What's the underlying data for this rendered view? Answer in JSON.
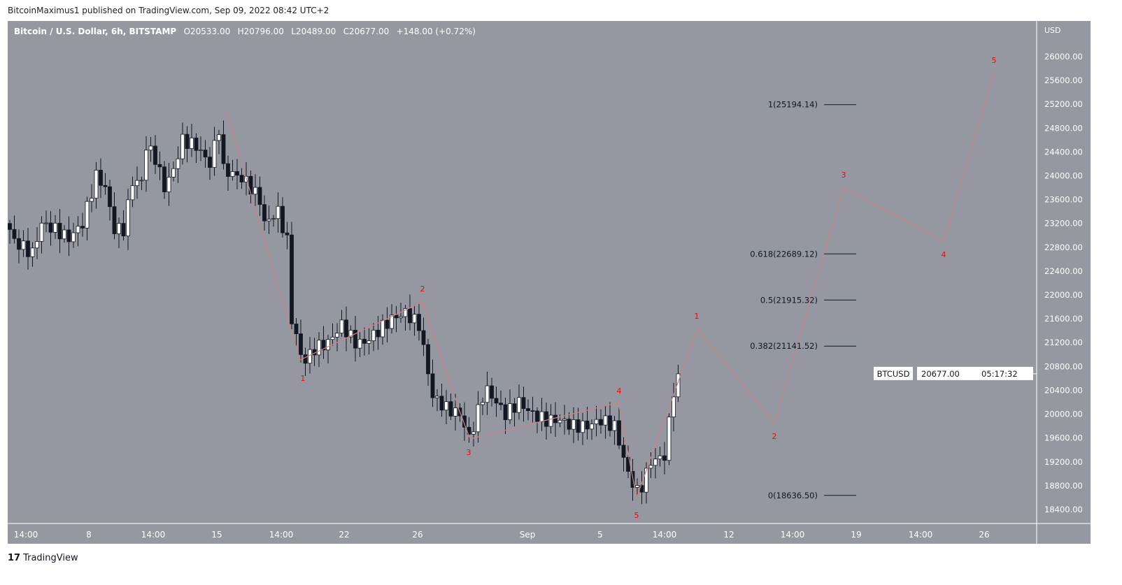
{
  "header": {
    "published": "BitcoinMaximus1 published on TradingView.com, Sep 09, 2022 08:42 UTC+2"
  },
  "legend": {
    "symbol": "Bitcoin / U.S. Dollar, 6h, BITSTAMP",
    "o": "O20533.00",
    "h": "H20796.00",
    "l": "L20489.00",
    "c": "C20677.00",
    "change": "+148.00 (+0.72%)"
  },
  "price_axis": {
    "currency": "USD",
    "ticks": [
      "18400.00",
      "18800.00",
      "19200.00",
      "19600.00",
      "20000.00",
      "20400.00",
      "20800.00",
      "21200.00",
      "21600.00",
      "22000.00",
      "22400.00",
      "22800.00",
      "23200.00",
      "23600.00",
      "24000.00",
      "24400.00",
      "24800.00",
      "25200.00",
      "25600.00",
      "26000.00"
    ],
    "last_price": "20677.00",
    "countdown": "05:17:32",
    "symbol_tag": "BTCUSD"
  },
  "time_axis": {
    "ticks": [
      "14:00",
      "8",
      "14:00",
      "15",
      "14:00",
      "22",
      "26",
      "Sep",
      "5",
      "14:00",
      "12",
      "14:00",
      "19",
      "14:00",
      "26"
    ]
  },
  "fib_levels": [
    {
      "label": "1(25194.14)",
      "price": 25194.14
    },
    {
      "label": "0.618(22689.12)",
      "price": 22689.12
    },
    {
      "label": "0.5(21915.32)",
      "price": 21915.32
    },
    {
      "label": "0.382(21141.52)",
      "price": 21141.52
    },
    {
      "label": "0(18636.50)",
      "price": 18636.5
    }
  ],
  "wave_labels": [
    "1",
    "2",
    "3",
    "4",
    "5",
    "1",
    "2",
    "3",
    "4",
    "5"
  ],
  "close_anchors": [
    [
      0,
      23100
    ],
    [
      1,
      22900
    ],
    [
      5,
      22700
    ],
    [
      7,
      23200
    ],
    [
      10,
      23100
    ],
    [
      13,
      22950
    ],
    [
      16,
      23200
    ],
    [
      19,
      24000
    ],
    [
      21,
      23800
    ],
    [
      23,
      23100
    ],
    [
      25,
      23100
    ],
    [
      27,
      23900
    ],
    [
      29,
      23900
    ],
    [
      30,
      24500
    ],
    [
      32,
      24300
    ],
    [
      34,
      23800
    ],
    [
      36,
      24100
    ],
    [
      38,
      24600
    ],
    [
      41,
      24500
    ],
    [
      44,
      24200
    ],
    [
      46,
      24800
    ],
    [
      47,
      24100
    ],
    [
      50,
      24000
    ],
    [
      52,
      23900
    ],
    [
      55,
      23600
    ],
    [
      56,
      23200
    ],
    [
      59,
      23400
    ],
    [
      61,
      22900
    ],
    [
      62,
      21600
    ],
    [
      64,
      21000
    ],
    [
      65,
      20900
    ],
    [
      67,
      21100
    ],
    [
      70,
      21200
    ],
    [
      73,
      21500
    ],
    [
      76,
      21200
    ],
    [
      78,
      21200
    ],
    [
      81,
      21400
    ],
    [
      84,
      21600
    ],
    [
      87,
      21700
    ],
    [
      90,
      21500
    ],
    [
      92,
      20700
    ],
    [
      93,
      20300
    ],
    [
      96,
      20100
    ],
    [
      99,
      20000
    ],
    [
      101,
      19600
    ],
    [
      102,
      19800
    ],
    [
      104,
      20300
    ],
    [
      105,
      20400
    ],
    [
      109,
      20000
    ],
    [
      112,
      20200
    ],
    [
      115,
      20000
    ],
    [
      118,
      19900
    ],
    [
      121,
      19900
    ],
    [
      124,
      19800
    ],
    [
      127,
      19800
    ],
    [
      130,
      19900
    ],
    [
      133,
      19800
    ],
    [
      136,
      19000
    ],
    [
      138,
      18700
    ],
    [
      139,
      18800
    ],
    [
      141,
      19200
    ],
    [
      144,
      19300
    ],
    [
      146,
      20400
    ],
    [
      147,
      20677
    ]
  ],
  "colors": {
    "bg": "#9598a1",
    "up": "#ffffff",
    "down": "#131722",
    "wave": "#c98585",
    "label": "#ff0000"
  },
  "brand": "TradingView"
}
